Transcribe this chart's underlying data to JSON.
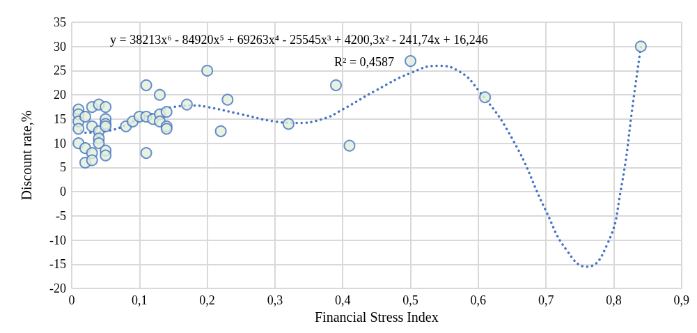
{
  "chart_data": {
    "type": "scatter",
    "xlabel": "Financial Stress Index",
    "ylabel": "Discount rate,%",
    "annotations": [
      "y = 38213x⁶ - 84920x⁵ + 69263x⁴ - 25545x³ + 4200,3x² - 241,74x + 16,246",
      "R² = 0,4587"
    ],
    "series": [
      {
        "color": "#e2efd9",
        "marker": "circle",
        "x": [
          0.01,
          0.01,
          0.01,
          0.01,
          0.01,
          0.02,
          0.02,
          0.02,
          0.03,
          0.03,
          0.03,
          0.03,
          0.04,
          0.04,
          0.04,
          0.04,
          0.05,
          0.05,
          0.05,
          0.05,
          0.05,
          0.05,
          0.08,
          0.09,
          0.1,
          0.11,
          0.11,
          0.11,
          0.12,
          0.13,
          0.13,
          0.13,
          0.14,
          0.14,
          0.14,
          0.17,
          0.2,
          0.22,
          0.23,
          0.32,
          0.39,
          0.41,
          0.5,
          0.61,
          0.84
        ],
        "values": [
          17,
          16,
          14.5,
          13,
          10,
          15.5,
          9,
          6,
          17.5,
          13.5,
          8,
          6.5,
          18,
          12.5,
          11,
          10,
          17.5,
          15,
          14,
          13.5,
          8.5,
          7.5,
          13.5,
          14.5,
          15.5,
          22,
          15.5,
          8,
          15,
          20,
          16,
          14.5,
          16.5,
          13.5,
          13,
          18,
          25,
          12.5,
          19,
          14,
          22,
          9.5,
          27,
          19.5,
          30
        ]
      },
      {
        "type": "line",
        "color": "#4472c4",
        "line_style": "dotted",
        "marker": "none",
        "x": [
          0.01,
          0.02,
          0.05,
          0.1,
          0.15,
          0.18,
          0.2,
          0.25,
          0.3,
          0.33,
          0.37,
          0.4,
          0.45,
          0.5,
          0.54,
          0.57,
          0.6,
          0.65,
          0.7,
          0.73,
          0.76,
          0.79,
          0.81,
          0.83,
          0.84
        ],
        "values": [
          13.5,
          12.2,
          12.5,
          15,
          17.5,
          17.8,
          17.5,
          16,
          14.5,
          14.2,
          15,
          17,
          21,
          24.5,
          26,
          25,
          21,
          11,
          -4,
          -12,
          -15.5,
          -11,
          0,
          20,
          30
        ]
      }
    ],
    "xlim": [
      0,
      0.9
    ],
    "xticks": [
      0,
      {
        "value": 0.1,
        "label": "0,1"
      },
      {
        "value": 0.2,
        "label": "0,2"
      },
      {
        "value": 0.3,
        "label": "0,3"
      },
      {
        "value": 0.4,
        "label": "0,4"
      },
      {
        "value": 0.5,
        "label": "0,5"
      },
      {
        "value": 0.6,
        "label": "0,6"
      },
      {
        "value": 0.7,
        "label": "0,7"
      },
      {
        "value": 0.8,
        "label": "0,8"
      },
      {
        "value": 0.9,
        "label": "0,9"
      }
    ],
    "ylim": [
      -20,
      35
    ],
    "yticks": [
      -20,
      -15,
      -10,
      -5,
      0,
      5,
      10,
      15,
      20,
      25,
      30,
      35
    ],
    "grid": true
  }
}
